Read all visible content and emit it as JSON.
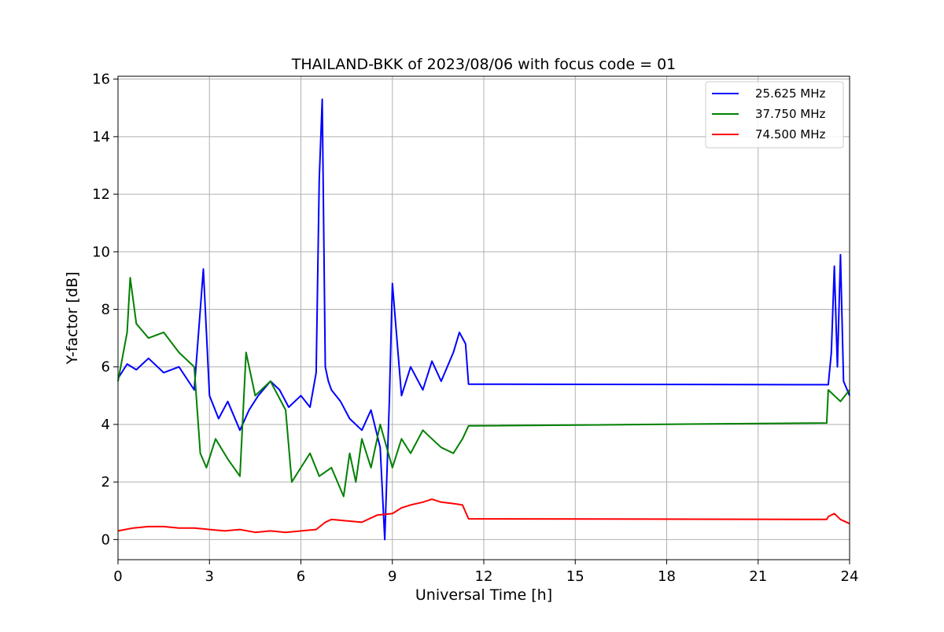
{
  "chart_data": {
    "type": "line",
    "title": "THAILAND-BKK of 2023/08/06 with focus code = 01",
    "xlabel": "Universal Time [h]",
    "ylabel": "Y-factor [dB]",
    "xlim": [
      0,
      24
    ],
    "ylim": [
      -0.7,
      16.1
    ],
    "xticks": [
      0,
      3,
      6,
      9,
      12,
      15,
      18,
      21,
      24
    ],
    "xtick_labels": [
      "0",
      "3",
      "6",
      "9",
      "12",
      "15",
      "18",
      "21",
      "24"
    ],
    "yticks": [
      0,
      2,
      4,
      6,
      8,
      10,
      12,
      14,
      16
    ],
    "ytick_labels": [
      "0",
      "2",
      "4",
      "6",
      "8",
      "10",
      "12",
      "14",
      "16"
    ],
    "grid": true,
    "legend_position": "top-right",
    "series": [
      {
        "name": "25.625 MHz",
        "color": "#0000ff",
        "x": [
          0,
          0.3,
          0.6,
          1.0,
          1.5,
          2.0,
          2.5,
          2.8,
          3.0,
          3.3,
          3.6,
          4.0,
          4.3,
          4.6,
          5.0,
          5.3,
          5.6,
          6.0,
          6.3,
          6.5,
          6.6,
          6.7,
          6.8,
          6.9,
          7.0,
          7.3,
          7.6,
          8.0,
          8.3,
          8.6,
          8.75,
          8.9,
          9.0,
          9.3,
          9.6,
          10.0,
          10.3,
          10.6,
          11.0,
          11.2,
          11.4,
          11.5,
          23.3,
          23.4,
          23.5,
          23.6,
          23.7,
          23.8,
          24.0
        ],
        "y": [
          5.6,
          6.1,
          5.9,
          6.3,
          5.8,
          6.0,
          5.2,
          9.4,
          5.0,
          4.2,
          4.8,
          3.8,
          4.5,
          5.0,
          5.5,
          5.2,
          4.6,
          5.0,
          4.6,
          5.8,
          12.5,
          15.3,
          6.0,
          5.5,
          5.2,
          4.8,
          4.2,
          3.8,
          4.5,
          3.2,
          0.0,
          4.8,
          8.9,
          5.0,
          6.0,
          5.2,
          6.2,
          5.5,
          6.5,
          7.2,
          6.8,
          5.4,
          5.38,
          6.5,
          9.5,
          6.0,
          9.9,
          5.5,
          5.0
        ],
        "legend": "25.625 MHz"
      },
      {
        "name": "37.750 MHz",
        "color": "#008000",
        "x": [
          0,
          0.3,
          0.4,
          0.6,
          1.0,
          1.5,
          2.0,
          2.5,
          2.7,
          2.9,
          3.2,
          3.6,
          4.0,
          4.2,
          4.5,
          5.0,
          5.5,
          5.7,
          6.0,
          6.3,
          6.6,
          7.0,
          7.4,
          7.6,
          7.8,
          8.0,
          8.3,
          8.6,
          9.0,
          9.3,
          9.6,
          10.0,
          10.3,
          10.6,
          11.0,
          11.3,
          11.5,
          23.25,
          23.3,
          23.5,
          23.7,
          24.0
        ],
        "y": [
          5.5,
          7.2,
          9.1,
          7.5,
          7.0,
          7.2,
          6.5,
          6.0,
          3.0,
          2.5,
          3.5,
          2.8,
          2.2,
          6.5,
          5.0,
          5.5,
          4.5,
          2.0,
          2.5,
          3.0,
          2.2,
          2.5,
          1.5,
          3.0,
          2.0,
          3.5,
          2.5,
          4.0,
          2.5,
          3.5,
          3.0,
          3.8,
          3.5,
          3.2,
          3.0,
          3.5,
          3.95,
          4.05,
          5.2,
          5.0,
          4.8,
          5.2
        ],
        "legend": "37.750 MHz"
      },
      {
        "name": "74.500 MHz",
        "color": "#ff0000",
        "x": [
          0,
          0.5,
          1.0,
          1.5,
          2.0,
          2.5,
          3.0,
          3.5,
          4.0,
          4.5,
          5.0,
          5.5,
          6.0,
          6.5,
          6.8,
          7.0,
          7.5,
          8.0,
          8.5,
          9.0,
          9.3,
          9.6,
          10.0,
          10.3,
          10.6,
          11.0,
          11.3,
          11.5,
          23.25,
          23.3,
          23.5,
          23.7,
          24.0
        ],
        "y": [
          0.3,
          0.4,
          0.45,
          0.45,
          0.4,
          0.4,
          0.35,
          0.3,
          0.35,
          0.25,
          0.3,
          0.25,
          0.3,
          0.35,
          0.6,
          0.7,
          0.65,
          0.6,
          0.85,
          0.9,
          1.1,
          1.2,
          1.3,
          1.4,
          1.3,
          1.25,
          1.2,
          0.72,
          0.7,
          0.8,
          0.9,
          0.7,
          0.55
        ],
        "legend": "74.500 MHz"
      }
    ]
  }
}
